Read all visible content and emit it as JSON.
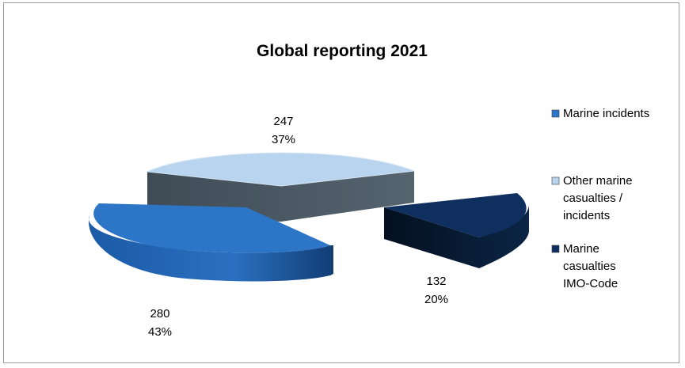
{
  "chart_data": {
    "type": "pie",
    "style": "3d-exploded",
    "title": "Global reporting 2021",
    "categories": [
      "Marine incidents",
      "Other marine casualties / incidents",
      "Marine casualties IMO-Code"
    ],
    "values": [
      280,
      247,
      132
    ],
    "percent_labels": [
      "43%",
      "37%",
      "20%"
    ],
    "legend": {
      "placement": "right",
      "entries": [
        {
          "lines": [
            "Marine incidents"
          ]
        },
        {
          "lines": [
            "Other marine",
            "casualties /",
            "incidents"
          ]
        },
        {
          "lines": [
            "Marine",
            "casualties",
            "IMO-Code"
          ]
        }
      ]
    }
  },
  "colors": {
    "marine_incidents_top": "#2d75c6",
    "marine_incidents_side": "#1f5ea8",
    "other_top": "#b8d4ee",
    "other_side": "#4a5a66",
    "imo_top": "#0f2f5e",
    "imo_side": "#061a33"
  }
}
